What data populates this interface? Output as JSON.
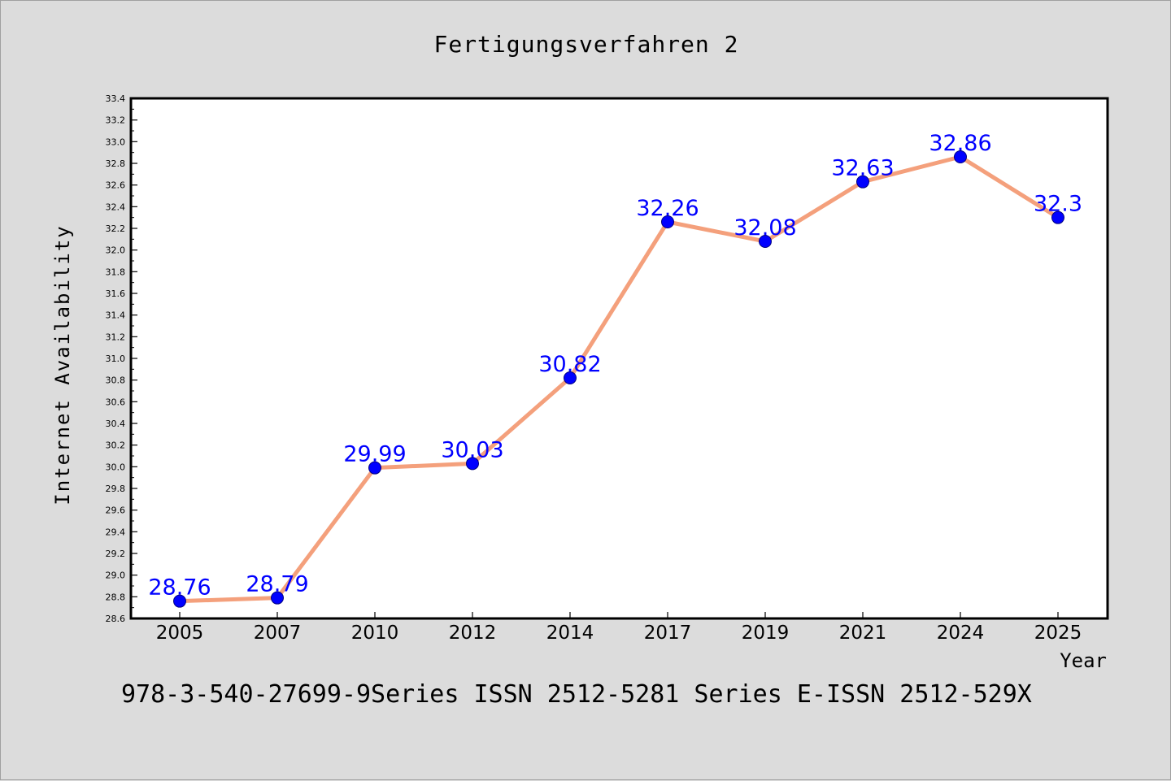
{
  "chart_data": {
    "type": "line",
    "title": "Fertigungsverfahren 2",
    "xlabel": "Year",
    "ylabel": "Internet Availability",
    "categories": [
      "2005",
      "2007",
      "2010",
      "2012",
      "2014",
      "2017",
      "2019",
      "2021",
      "2024",
      "2025"
    ],
    "series": [
      {
        "values": [
          28.76,
          28.79,
          29.99,
          30.03,
          30.82,
          32.26,
          32.08,
          32.63,
          32.86,
          32.3
        ],
        "data_labels": [
          "28.76",
          "28.79",
          "29.99",
          "30.03",
          "30.82",
          "32.26",
          "32.08",
          "32.63",
          "32.86",
          "32.3"
        ],
        "line_color": "#f4a07c",
        "marker_color": "#0000ff"
      }
    ],
    "ylim": [
      28.6,
      33.4
    ],
    "y_ticks": [
      "28.6",
      "28.8",
      "29.0",
      "29.2",
      "29.4",
      "29.6",
      "29.8",
      "30.0",
      "30.2",
      "30.4",
      "30.6",
      "30.8",
      "31.0",
      "31.2",
      "31.4",
      "31.6",
      "31.8",
      "32.0",
      "32.2",
      "32.4",
      "32.6",
      "32.8",
      "33.0",
      "33.2",
      "33.4"
    ],
    "grid": false,
    "legend": "none",
    "footer": "978-3-540-27699-9Series ISSN 2512-5281 Series E-ISSN 2512-529X",
    "label_color": "#0000ff"
  }
}
